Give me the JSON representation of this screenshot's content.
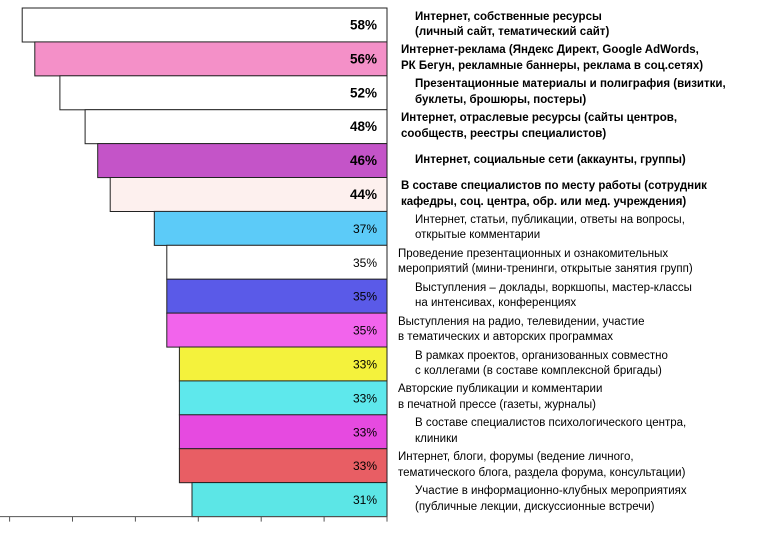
{
  "chart_data": {
    "type": "bar",
    "orientation": "horizontal",
    "grid": false,
    "legend": "none",
    "categories": [
      [
        "Интернет, собственные ресурсы",
        "(личный сайт, тематический сайт)"
      ],
      [
        "Интернет-реклама (Яндекс Директ, Google AdWords,",
        "РК Бегун, рекламные баннеры, реклама в соц.сетях)"
      ],
      [
        "Презентационные материалы и полиграфия (визитки,",
        "буклеты, брошюры, постеры)"
      ],
      [
        "Интернет, отраслевые ресурсы (сайты центров,",
        "сообществ, реестры специалистов)"
      ],
      [
        "Интернет, социальные сети (аккаунты, группы)"
      ],
      [
        "В составе специалистов по месту работы (сотрудник",
        "кафедры, соц. центра, обр. или мед. учреждения)"
      ],
      [
        "Интернет, статьи, публикации, ответы на вопросы,",
        "открытые комментарии"
      ],
      [
        "Проведение презентационных и ознакомительных",
        "мероприятий (мини-тренинги, открытые занятия групп)"
      ],
      [
        "Выступления – доклады, воркшопы, мастер-классы",
        "на интенсивах, конференциях"
      ],
      [
        "Выступления на радио, телевидении, участие",
        "в тематических и авторских программах"
      ],
      [
        "В рамках проектов, организованных совместно",
        "с коллегами (в составе комплексной бригады)"
      ],
      [
        "Авторские публикации и комментарии",
        "в печатной прессе (газеты, журналы)"
      ],
      [
        "В составе специалистов психологического центра,",
        "клиники"
      ],
      [
        "Интернет, блоги, форумы (ведение личного,",
        "тематического блога, раздела форума, консультации)"
      ],
      [
        "Участие в информационно-клубных мероприятиях",
        "(публичные лекции, дискуссионные встречи)"
      ]
    ],
    "values": [
      58,
      56,
      52,
      48,
      46,
      44,
      37,
      35,
      35,
      35,
      33,
      33,
      33,
      33,
      31
    ],
    "value_labels": [
      "58%",
      "56%",
      "52%",
      "48%",
      "46%",
      "44%",
      "37%",
      "35%",
      "35%",
      "35%",
      "33%",
      "33%",
      "33%",
      "33%",
      "31%"
    ],
    "bold": [
      true,
      true,
      true,
      true,
      true,
      true,
      false,
      false,
      false,
      false,
      false,
      false,
      false,
      false,
      false
    ],
    "colors": [
      "#ffffff",
      "#f490c8",
      "#ffffff",
      "#ffffff",
      "#c454c8",
      "#fdf0ee",
      "#5ccbf8",
      "#ffffff",
      "#5a5ae8",
      "#f264ec",
      "#f4f23c",
      "#5ee8ec",
      "#e64ae0",
      "#e85e64",
      "#5ce6e6"
    ],
    "xlim": [
      0,
      60
    ]
  }
}
